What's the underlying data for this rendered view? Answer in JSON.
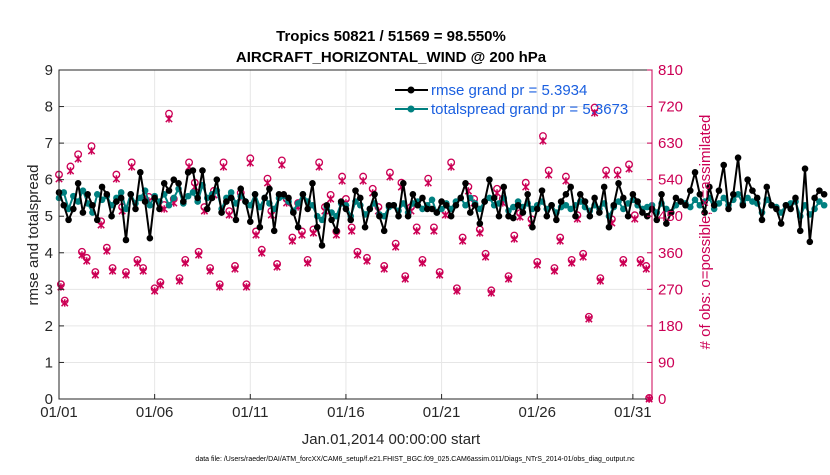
{
  "chart_data": {
    "type": "line",
    "title": [
      "Tropics 50821 / 51569 = 98.550%",
      "AIRCRAFT_HORIZONTAL_WIND @ 200 hPa"
    ],
    "xlabel": "Jan.01,2014 00:00:00 start",
    "ylabel_left": "rmse and totalspread",
    "ylabel_right": "# of obs: o=possible; ×=assimilated",
    "footnote": "data file: /Users/raeder/DAI/ATM_forcXX/CAM6_setup/f.e21.FHIST_BGC.f09_025.CAM6assim.011/Diags_NTrS_2014-01/obs_diag_output.nc",
    "xlim": [
      1,
      32
    ],
    "ylim_left": [
      0,
      9
    ],
    "ylim_right": [
      0,
      810
    ],
    "x_ticks": [
      1,
      6,
      11,
      16,
      21,
      26,
      31
    ],
    "x_tick_labels": [
      "01/01",
      "01/06",
      "01/11",
      "01/16",
      "01/21",
      "01/26",
      "01/31"
    ],
    "y_ticks_left": [
      "0",
      "1",
      "2",
      "3",
      "4",
      "5",
      "6",
      "7",
      "8",
      "9"
    ],
    "y_ticks_right": [
      "0",
      "90",
      "180",
      "270",
      "360",
      "450",
      "540",
      "630",
      "720",
      "810"
    ],
    "grid": true,
    "legend_position": "top-right",
    "colors": {
      "rmse": "#000000",
      "totalspread": "#008080",
      "obs": "#cc0055",
      "legend_text": "#1a5fe0"
    },
    "x_start": 1.0,
    "x_step": 0.25,
    "series": [
      {
        "name": "rmse grand pr = 5.3934",
        "axis": "left",
        "values": [
          5.65,
          5.3,
          4.9,
          5.2,
          5.9,
          5.1,
          5.6,
          5.3,
          4.9,
          5.8,
          5.6,
          5.0,
          5.4,
          5.5,
          4.35,
          5.6,
          5.2,
          6.2,
          5.4,
          4.4,
          5.5,
          5.2,
          5.9,
          5.7,
          6.0,
          5.9,
          5.4,
          6.2,
          6.25,
          5.5,
          6.25,
          5.2,
          5.5,
          6.0,
          5.1,
          5.4,
          5.5,
          4.9,
          5.75,
          5.4,
          4.85,
          5.6,
          4.7,
          5.5,
          5.75,
          4.6,
          5.6,
          5.6,
          5.5,
          5.1,
          4.7,
          5.6,
          5.2,
          5.9,
          4.7,
          4.2,
          5.3,
          4.9,
          4.6,
          5.4,
          5.2,
          4.9,
          5.7,
          5.5,
          4.7,
          5.2,
          5.6,
          5.0,
          4.6,
          5.3,
          5.3,
          5.0,
          5.9,
          5.0,
          5.6,
          5.3,
          5.5,
          5.2,
          5.2,
          5.1,
          5.4,
          5.3,
          5.0,
          5.3,
          5.5,
          5.9,
          5.1,
          5.3,
          4.8,
          5.4,
          6.0,
          5.5,
          5.0,
          5.8,
          5.0,
          4.95,
          5.3,
          5.1,
          5.6,
          4.7,
          5.2,
          5.7,
          5.0,
          5.3,
          4.9,
          5.4,
          5.6,
          5.8,
          5.0,
          5.6,
          5.4,
          5.0,
          5.5,
          5.1,
          5.8,
          4.7,
          5.3,
          5.9,
          5.5,
          5.0,
          5.6,
          5.4,
          5.1,
          5.0,
          5.2,
          4.9,
          5.6,
          4.8,
          5.1,
          5.5,
          5.4,
          5.3,
          5.7,
          6.2,
          5.6,
          5.1,
          5.8,
          5.3,
          5.7,
          6.4,
          5.2,
          5.6,
          6.6,
          5.3,
          6.0,
          5.7,
          5.5,
          4.9,
          5.8,
          5.3,
          5.2,
          4.8,
          5.3,
          5.2,
          5.5,
          4.6,
          6.3,
          4.3,
          5.5,
          5.7,
          5.6
        ]
      },
      {
        "name": "totalspread grand pr = 5.3673",
        "axis": "left",
        "values": [
          5.5,
          5.65,
          5.2,
          5.55,
          5.4,
          5.7,
          5.35,
          5.1,
          5.6,
          5.45,
          5.55,
          5.3,
          5.5,
          5.65,
          5.2,
          5.6,
          5.35,
          5.5,
          5.7,
          5.3,
          5.55,
          5.4,
          5.6,
          5.3,
          5.5,
          5.75,
          5.35,
          5.55,
          5.65,
          5.4,
          5.85,
          5.5,
          5.6,
          5.7,
          5.2,
          5.5,
          5.65,
          5.35,
          5.55,
          5.4,
          5.3,
          5.6,
          5.25,
          5.5,
          5.35,
          5.2,
          5.5,
          5.55,
          5.4,
          5.15,
          5.35,
          5.6,
          5.4,
          5.3,
          5.0,
          4.9,
          5.25,
          5.1,
          5.0,
          5.35,
          5.3,
          5.0,
          5.4,
          5.3,
          5.05,
          5.2,
          5.35,
          5.05,
          5.0,
          5.25,
          5.3,
          5.15,
          5.35,
          5.1,
          5.35,
          5.4,
          5.2,
          5.3,
          5.45,
          5.1,
          5.2,
          5.35,
          5.2,
          5.4,
          5.5,
          5.3,
          5.5,
          5.35,
          5.2,
          5.4,
          5.5,
          5.3,
          5.35,
          5.5,
          5.15,
          5.25,
          5.4,
          5.25,
          5.35,
          5.2,
          5.3,
          5.4,
          5.2,
          5.3,
          5.1,
          5.25,
          5.3,
          5.2,
          5.3,
          5.4,
          5.25,
          5.15,
          5.3,
          5.2,
          5.35,
          5.0,
          5.25,
          5.4,
          5.2,
          5.35,
          5.45,
          5.3,
          5.2,
          5.25,
          5.3,
          5.1,
          5.35,
          5.2,
          5.1,
          5.3,
          5.4,
          5.35,
          5.25,
          5.45,
          5.3,
          5.4,
          5.5,
          5.2,
          5.35,
          5.5,
          5.3,
          5.45,
          5.6,
          5.35,
          5.5,
          5.4,
          5.35,
          5.1,
          5.45,
          5.3,
          5.25,
          5.1,
          5.3,
          5.35,
          5.4,
          5.0,
          5.3,
          5.05,
          5.2,
          5.4,
          5.3
        ]
      }
    ],
    "obs_points": [
      [
        1.0,
        550
      ],
      [
        1.1,
        280
      ],
      [
        1.3,
        240
      ],
      [
        1.6,
        570
      ],
      [
        2.0,
        600
      ],
      [
        2.2,
        360
      ],
      [
        2.45,
        345
      ],
      [
        2.7,
        620
      ],
      [
        2.9,
        310
      ],
      [
        3.2,
        435
      ],
      [
        3.5,
        370
      ],
      [
        3.8,
        320
      ],
      [
        4.0,
        550
      ],
      [
        4.3,
        470
      ],
      [
        4.5,
        310
      ],
      [
        4.8,
        580
      ],
      [
        5.1,
        340
      ],
      [
        5.4,
        320
      ],
      [
        5.7,
        495
      ],
      [
        6.0,
        270
      ],
      [
        6.3,
        285
      ],
      [
        6.5,
        475
      ],
      [
        6.75,
        700
      ],
      [
        7.0,
        490
      ],
      [
        7.3,
        295
      ],
      [
        7.6,
        340
      ],
      [
        7.8,
        580
      ],
      [
        8.1,
        530
      ],
      [
        8.3,
        360
      ],
      [
        8.6,
        470
      ],
      [
        8.9,
        320
      ],
      [
        9.1,
        510
      ],
      [
        9.4,
        280
      ],
      [
        9.6,
        580
      ],
      [
        9.9,
        460
      ],
      [
        10.2,
        325
      ],
      [
        10.5,
        505
      ],
      [
        10.8,
        280
      ],
      [
        11.0,
        590
      ],
      [
        11.3,
        410
      ],
      [
        11.6,
        365
      ],
      [
        11.9,
        540
      ],
      [
        12.1,
        460
      ],
      [
        12.4,
        330
      ],
      [
        12.65,
        585
      ],
      [
        12.9,
        490
      ],
      [
        13.2,
        395
      ],
      [
        13.5,
        480
      ],
      [
        13.7,
        410
      ],
      [
        14.0,
        340
      ],
      [
        14.3,
        415
      ],
      [
        14.6,
        580
      ],
      [
        14.9,
        470
      ],
      [
        15.2,
        500
      ],
      [
        15.5,
        410
      ],
      [
        15.8,
        545
      ],
      [
        16.0,
        490
      ],
      [
        16.3,
        420
      ],
      [
        16.6,
        360
      ],
      [
        16.9,
        545
      ],
      [
        17.1,
        345
      ],
      [
        17.4,
        515
      ],
      [
        17.7,
        470
      ],
      [
        18.0,
        325
      ],
      [
        18.3,
        555
      ],
      [
        18.6,
        380
      ],
      [
        18.9,
        530
      ],
      [
        19.1,
        300
      ],
      [
        19.4,
        470
      ],
      [
        19.7,
        420
      ],
      [
        20.0,
        340
      ],
      [
        20.3,
        540
      ],
      [
        20.6,
        420
      ],
      [
        20.9,
        310
      ],
      [
        21.2,
        460
      ],
      [
        21.5,
        580
      ],
      [
        21.8,
        270
      ],
      [
        22.1,
        395
      ],
      [
        22.4,
        520
      ],
      [
        22.7,
        490
      ],
      [
        23.0,
        415
      ],
      [
        23.3,
        355
      ],
      [
        23.6,
        265
      ],
      [
        23.9,
        515
      ],
      [
        24.2,
        490
      ],
      [
        24.5,
        300
      ],
      [
        24.8,
        400
      ],
      [
        25.1,
        455
      ],
      [
        25.4,
        530
      ],
      [
        25.7,
        440
      ],
      [
        26.0,
        335
      ],
      [
        26.3,
        645
      ],
      [
        26.6,
        560
      ],
      [
        26.9,
        320
      ],
      [
        27.2,
        395
      ],
      [
        27.5,
        545
      ],
      [
        27.8,
        340
      ],
      [
        28.1,
        450
      ],
      [
        28.4,
        355
      ],
      [
        28.7,
        200
      ],
      [
        29.0,
        715
      ],
      [
        29.3,
        295
      ],
      [
        29.6,
        560
      ],
      [
        29.9,
        440
      ],
      [
        30.2,
        560
      ],
      [
        30.5,
        340
      ],
      [
        30.8,
        575
      ],
      [
        31.1,
        450
      ],
      [
        31.4,
        340
      ],
      [
        31.7,
        325
      ],
      [
        31.85,
        0
      ]
    ]
  }
}
